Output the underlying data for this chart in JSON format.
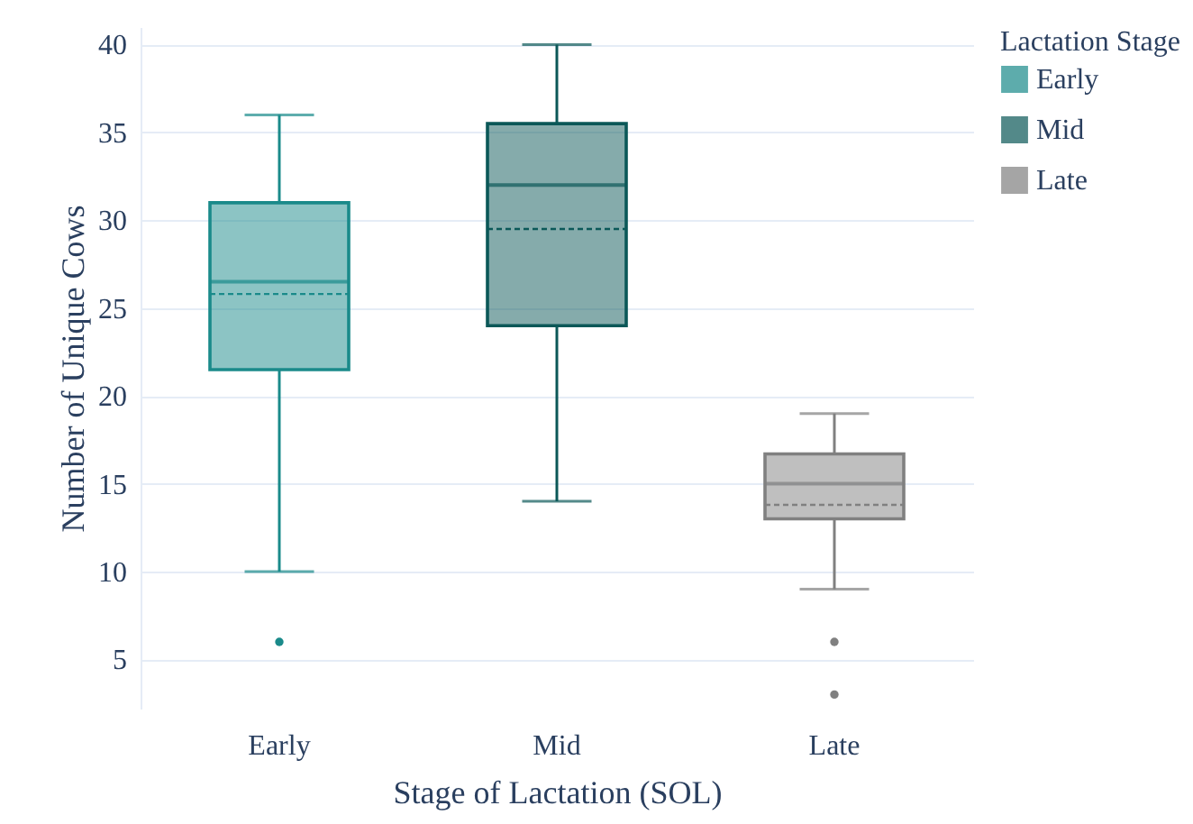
{
  "chart_data": {
    "type": "box",
    "xlabel": "Stage of Lactation (SOL)",
    "ylabel": "Number of Unique Cows",
    "legend_title": "Lactation Stage",
    "legend": "top right",
    "grid": "y",
    "categories": [
      "Early",
      "Mid",
      "Late"
    ],
    "ylim": [
      2.2,
      41
    ],
    "yticks": [
      5,
      10,
      15,
      20,
      25,
      30,
      35,
      40
    ],
    "series": [
      {
        "name": "Early",
        "color": "#1a8a8a",
        "boxes": [
          {
            "low": 10,
            "q1": 21.5,
            "median": 26.5,
            "q3": 31,
            "high": 36,
            "mean": 25.8,
            "outliers": [
              6
            ]
          },
          null,
          null
        ]
      },
      {
        "name": "Mid",
        "color": "#0b5858",
        "boxes": [
          null,
          {
            "low": 14,
            "q1": 24,
            "median": 32,
            "q3": 35.5,
            "high": 40,
            "mean": 29.5
          },
          null
        ]
      },
      {
        "name": "Late",
        "color": "#808080",
        "boxes": [
          null,
          null,
          {
            "low": 9,
            "q1": 13,
            "median": 15,
            "q3": 16.7,
            "high": 19,
            "mean": 13.8,
            "outliers": [
              6,
              3
            ]
          }
        ]
      }
    ]
  }
}
